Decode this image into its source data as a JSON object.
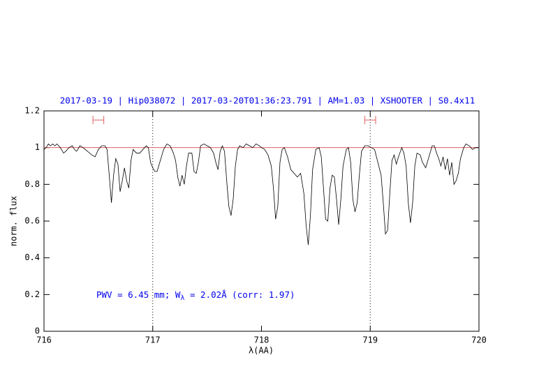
{
  "chart_data": {
    "type": "line",
    "title": "2017-03-19 | Hip038072 | 2017-03-20T01:36:23.791 | AM=1.03 | XSHOOTER | S0.4x11",
    "xlabel": "λ(AA)",
    "ylabel": "norm. flux",
    "annotation": [
      "PWV = 6.45 mm; W",
      "λ",
      " = 2.02Å (corr: 1.97)"
    ],
    "xlim": [
      716,
      720
    ],
    "xticks": [
      716,
      717,
      718,
      719,
      720
    ],
    "ylim": [
      0,
      1.2
    ],
    "yticks": [
      0,
      0.2,
      0.4,
      0.6,
      0.8,
      1,
      1.2
    ],
    "color": "#000000",
    "reference_line": 1,
    "reference_color": "#e06060",
    "vlines": [
      717,
      719
    ],
    "markers": [
      {
        "x": [
          716.45,
          716.55
        ],
        "y": 1.15
      },
      {
        "x": [
          718.95,
          719.05
        ],
        "y": 1.15
      }
    ],
    "x": [
      716.0,
      716.02,
      716.04,
      716.06,
      716.08,
      716.1,
      716.12,
      716.15,
      716.18,
      716.2,
      716.23,
      716.26,
      716.28,
      716.3,
      716.33,
      716.36,
      716.4,
      716.44,
      716.47,
      716.5,
      716.53,
      716.56,
      716.58,
      716.6,
      716.62,
      716.64,
      716.66,
      716.68,
      716.7,
      716.72,
      716.74,
      716.76,
      716.78,
      716.8,
      716.82,
      716.85,
      716.88,
      716.91,
      716.94,
      716.96,
      716.98,
      717.0,
      717.02,
      717.04,
      717.07,
      717.1,
      717.13,
      717.16,
      717.19,
      717.21,
      717.23,
      717.25,
      717.27,
      717.29,
      717.31,
      717.33,
      717.36,
      717.38,
      717.4,
      717.42,
      717.44,
      717.47,
      717.5,
      717.53,
      717.56,
      717.58,
      717.6,
      717.62,
      717.64,
      717.66,
      717.68,
      717.7,
      717.72,
      717.74,
      717.76,
      717.78,
      717.8,
      717.83,
      717.86,
      717.89,
      717.92,
      717.95,
      717.98,
      718.0,
      718.03,
      718.06,
      718.09,
      718.11,
      718.13,
      718.15,
      718.17,
      718.19,
      718.21,
      718.24,
      718.27,
      718.3,
      718.33,
      718.36,
      718.39,
      718.41,
      718.43,
      718.45,
      718.47,
      718.5,
      718.53,
      718.55,
      718.57,
      718.59,
      718.61,
      718.63,
      718.65,
      718.67,
      718.69,
      718.71,
      718.73,
      718.75,
      718.78,
      718.8,
      718.82,
      718.84,
      718.86,
      718.88,
      718.9,
      718.92,
      718.95,
      718.98,
      719.01,
      719.04,
      719.07,
      719.1,
      719.12,
      719.14,
      719.16,
      719.18,
      719.2,
      719.22,
      719.24,
      719.26,
      719.29,
      719.31,
      719.33,
      719.35,
      719.37,
      719.39,
      719.41,
      719.43,
      719.46,
      719.48,
      719.51,
      719.54,
      719.57,
      719.59,
      719.61,
      719.63,
      719.65,
      719.67,
      719.69,
      719.71,
      719.73,
      719.75,
      719.77,
      719.79,
      719.81,
      719.83,
      719.86,
      719.88,
      719.91,
      719.94,
      719.97,
      720.0
    ],
    "values": [
      0.99,
      1.0,
      1.02,
      1.01,
      1.02,
      1.01,
      1.02,
      1.0,
      0.97,
      0.98,
      1.0,
      1.01,
      0.99,
      0.98,
      1.01,
      1.0,
      0.98,
      0.96,
      0.95,
      0.99,
      1.01,
      1.01,
      0.99,
      0.85,
      0.7,
      0.85,
      0.94,
      0.91,
      0.76,
      0.82,
      0.89,
      0.82,
      0.78,
      0.93,
      0.99,
      0.97,
      0.97,
      0.99,
      1.01,
      1.0,
      0.92,
      0.89,
      0.87,
      0.87,
      0.93,
      0.99,
      1.02,
      1.01,
      0.97,
      0.93,
      0.84,
      0.79,
      0.85,
      0.8,
      0.9,
      0.97,
      0.97,
      0.87,
      0.86,
      0.92,
      1.01,
      1.02,
      1.01,
      1.0,
      0.97,
      0.92,
      0.88,
      0.98,
      1.01,
      0.98,
      0.82,
      0.68,
      0.63,
      0.72,
      0.9,
      0.99,
      1.01,
      1.0,
      1.02,
      1.01,
      1.0,
      1.02,
      1.01,
      1.0,
      0.99,
      0.96,
      0.9,
      0.78,
      0.61,
      0.68,
      0.92,
      0.99,
      1.0,
      0.95,
      0.88,
      0.86,
      0.84,
      0.86,
      0.75,
      0.58,
      0.47,
      0.63,
      0.88,
      0.99,
      1.0,
      0.95,
      0.78,
      0.61,
      0.6,
      0.78,
      0.85,
      0.84,
      0.72,
      0.58,
      0.72,
      0.9,
      0.99,
      1.0,
      0.92,
      0.72,
      0.65,
      0.7,
      0.85,
      0.98,
      1.01,
      1.01,
      1.0,
      0.99,
      0.92,
      0.85,
      0.7,
      0.53,
      0.55,
      0.75,
      0.93,
      0.96,
      0.91,
      0.95,
      1.0,
      0.97,
      0.9,
      0.7,
      0.59,
      0.7,
      0.9,
      0.97,
      0.96,
      0.92,
      0.89,
      0.95,
      1.01,
      1.01,
      0.97,
      0.94,
      0.9,
      0.95,
      0.88,
      0.94,
      0.85,
      0.92,
      0.8,
      0.82,
      0.86,
      0.94,
      1.0,
      1.02,
      1.01,
      0.99,
      1.0,
      1.0
    ]
  }
}
